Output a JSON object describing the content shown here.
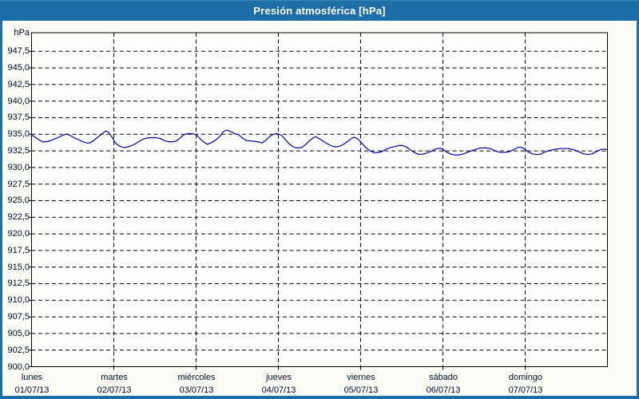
{
  "window": {
    "title": "Presión atmosférica [hPa]"
  },
  "colors": {
    "frame_blue": "#1d6da6",
    "page_bg": "#fbfcf6",
    "plot_bg": "#fefffc",
    "grid": "#000000",
    "axis": "#000000",
    "line": "#0000b2",
    "tick_text": "#000d28",
    "title_text": "#ffffff"
  },
  "chart_data": {
    "type": "line",
    "title": "Presión atmosférica [hPa]",
    "y_unit_label": "hPa",
    "xlabel": "",
    "ylabel": "hPa",
    "ylim": [
      900,
      950.3
    ],
    "ytick_step": 2.5,
    "yticks": [
      "947,5",
      "945,0",
      "942,5",
      "940,0",
      "937,5",
      "935,0",
      "932,5",
      "930,0",
      "927,5",
      "925,0",
      "922,5",
      "920,0",
      "917,5",
      "915,0",
      "912,5",
      "910,0",
      "907,5",
      "905,0",
      "902,5",
      "900,0"
    ],
    "x_range_days": [
      0,
      7
    ],
    "grid": "dashed",
    "legend_position": "none",
    "days": [
      {
        "weekday": "lunes",
        "date": "01/07/13"
      },
      {
        "weekday": "martes",
        "date": "02/07/13"
      },
      {
        "weekday": "miércoles",
        "date": "03/07/13"
      },
      {
        "weekday": "jueves",
        "date": "04/07/13"
      },
      {
        "weekday": "viernes",
        "date": "05/07/13"
      },
      {
        "weekday": "sábado",
        "date": "06/07/13"
      },
      {
        "weekday": "domingo",
        "date": "07/07/13"
      }
    ],
    "series": [
      {
        "name": "Presión atmosférica",
        "color": "#0000b2",
        "x_days": [
          0.0,
          0.048,
          0.097,
          0.145,
          0.193,
          0.242,
          0.29,
          0.339,
          0.387,
          0.426,
          0.474,
          0.522,
          0.571,
          0.619,
          0.668,
          0.706,
          0.755,
          0.803,
          0.851,
          0.9,
          0.938,
          0.977,
          1.025,
          1.074,
          1.122,
          1.171,
          1.219,
          1.267,
          1.316,
          1.364,
          1.413,
          1.461,
          1.509,
          1.558,
          1.606,
          1.654,
          1.703,
          1.751,
          1.8,
          1.848,
          1.896,
          1.945,
          1.993,
          2.041,
          2.09,
          2.138,
          2.187,
          2.235,
          2.283,
          2.332,
          2.37,
          2.419,
          2.467,
          2.515,
          2.564,
          2.612,
          2.661,
          2.709,
          2.757,
          2.806,
          2.854,
          2.903,
          2.951,
          2.99,
          3.038,
          3.086,
          3.135,
          3.183,
          3.231,
          3.28,
          3.328,
          3.377,
          3.425,
          3.454,
          3.502,
          3.551,
          3.599,
          3.648,
          3.696,
          3.744,
          3.793,
          3.841,
          3.889,
          3.928,
          3.977,
          4.025,
          4.073,
          4.122,
          4.17,
          4.218,
          4.267,
          4.315,
          4.364,
          4.412,
          4.46,
          4.509,
          4.557,
          4.605,
          4.654,
          4.702,
          4.751,
          4.799,
          4.847,
          4.896,
          4.944,
          4.992,
          5.041,
          5.089,
          5.138,
          5.186,
          5.234,
          5.283,
          5.331,
          5.379,
          5.428,
          5.476,
          5.525,
          5.573,
          5.621,
          5.67,
          5.718,
          5.766,
          5.815,
          5.863,
          5.911,
          5.94,
          5.989,
          6.037,
          6.086,
          6.134,
          6.182,
          6.231,
          6.279,
          6.327,
          6.376,
          6.424,
          6.473,
          6.521,
          6.569,
          6.618,
          6.666,
          6.714,
          6.763,
          6.811,
          6.86,
          6.908,
          6.947,
          7.0
        ],
        "values_hpa": [
          934.9,
          934.55,
          934.1,
          933.85,
          933.9,
          934.1,
          934.35,
          934.6,
          934.9,
          935.05,
          934.8,
          934.45,
          934.2,
          933.9,
          933.7,
          933.68,
          934.05,
          934.55,
          935.0,
          935.5,
          935.3,
          934.6,
          933.6,
          933.2,
          933.0,
          933.1,
          933.3,
          933.6,
          934.0,
          934.3,
          934.45,
          934.5,
          934.5,
          934.4,
          934.1,
          933.9,
          933.85,
          933.95,
          934.35,
          934.9,
          935.1,
          935.1,
          935.0,
          934.45,
          933.85,
          933.5,
          933.75,
          934.1,
          934.6,
          935.4,
          935.65,
          935.45,
          935.1,
          934.95,
          934.45,
          934.05,
          934.0,
          933.95,
          933.85,
          933.7,
          934.2,
          934.75,
          935.05,
          935.1,
          934.85,
          934.2,
          933.5,
          933.1,
          932.95,
          933.0,
          933.4,
          934.0,
          934.5,
          934.65,
          934.3,
          933.9,
          933.55,
          933.25,
          933.1,
          933.2,
          933.5,
          933.9,
          934.4,
          934.55,
          934.2,
          933.5,
          932.9,
          932.45,
          932.2,
          932.25,
          932.45,
          932.8,
          933.0,
          933.15,
          933.3,
          933.3,
          933.1,
          932.65,
          932.25,
          932.0,
          932.0,
          932.15,
          932.4,
          932.7,
          932.9,
          932.8,
          932.35,
          932.05,
          931.9,
          931.9,
          932.0,
          932.2,
          932.45,
          932.65,
          932.85,
          932.95,
          932.95,
          932.85,
          932.6,
          932.35,
          932.25,
          932.3,
          932.4,
          932.7,
          933.0,
          933.1,
          932.8,
          932.35,
          932.05,
          931.95,
          932.0,
          932.3,
          932.5,
          932.65,
          932.75,
          932.85,
          932.85,
          932.85,
          932.75,
          932.55,
          932.3,
          932.05,
          931.95,
          932.05,
          932.35,
          932.65,
          932.78,
          932.72
        ]
      }
    ]
  }
}
